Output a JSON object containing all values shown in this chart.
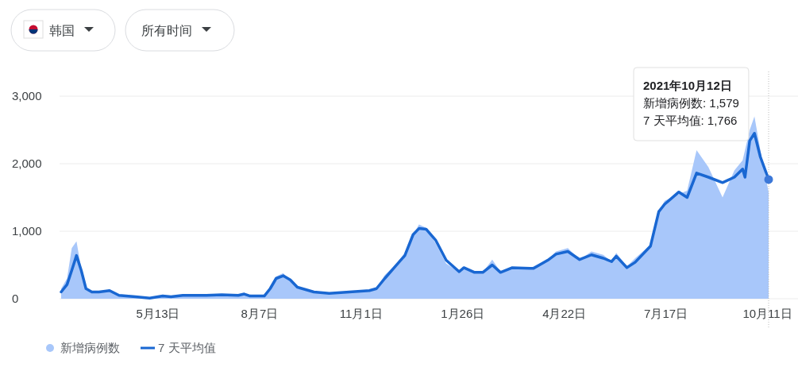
{
  "chart_data": {
    "type": "line",
    "xlim": [
      "2020-02-21",
      "2021-10-12"
    ],
    "ylim": [
      0,
      3000
    ],
    "yticks": [
      0,
      {
        "value": 1000,
        "label": "1,000"
      },
      {
        "value": 2000,
        "label": "2,000"
      },
      {
        "value": 3000,
        "label": "3,000"
      }
    ],
    "xticks": [
      {
        "value": "2020-05-13",
        "label": "5月13日"
      },
      {
        "value": "2020-08-07",
        "label": "8月7日"
      },
      {
        "value": "2020-11-01",
        "label": "11月1日"
      },
      {
        "value": "2021-01-26",
        "label": "1月26日"
      },
      {
        "value": "2021-04-22",
        "label": "4月22日"
      },
      {
        "value": "2021-07-17",
        "label": "7月17日"
      },
      {
        "value": "2021-10-11",
        "label": "10月11日"
      }
    ],
    "grid": "y",
    "legend": "bottom left",
    "x": [
      "2020-02-21",
      "2020-02-26",
      "2020-03-01",
      "2020-03-05",
      "2020-03-09",
      "2020-03-13",
      "2020-03-18",
      "2020-03-24",
      "2020-04-02",
      "2020-04-10",
      "2020-04-24",
      "2020-05-06",
      "2020-05-17",
      "2020-05-24",
      "2020-06-03",
      "2020-06-23",
      "2020-07-06",
      "2020-07-20",
      "2020-07-25",
      "2020-07-30",
      "2020-08-09",
      "2020-08-11",
      "2020-08-16",
      "2020-08-21",
      "2020-08-27",
      "2020-09-02",
      "2020-09-08",
      "2020-09-22",
      "2020-10-05",
      "2020-10-22",
      "2020-11-08",
      "2020-11-14",
      "2020-11-21",
      "2020-11-30",
      "2020-12-08",
      "2020-12-15",
      "2020-12-20",
      "2020-12-26",
      "2021-01-03",
      "2021-01-12",
      "2021-01-23",
      "2021-01-27",
      "2021-02-05",
      "2021-02-12",
      "2021-02-20",
      "2021-02-27",
      "2021-03-09",
      "2021-03-24",
      "2021-03-27",
      "2021-04-08",
      "2021-04-15",
      "2021-04-25",
      "2021-05-05",
      "2021-05-15",
      "2021-05-25",
      "2021-06-01",
      "2021-06-05",
      "2021-06-14",
      "2021-06-21",
      "2021-07-04",
      "2021-07-11",
      "2021-07-16",
      "2021-07-28",
      "2021-08-04",
      "2021-08-12",
      "2021-08-22",
      "2021-09-03",
      "2021-09-13",
      "2021-09-20",
      "2021-09-22",
      "2021-09-26",
      "2021-09-30",
      "2021-10-05",
      "2021-10-12"
    ],
    "series": [
      {
        "name": "新增病例数",
        "type": "area",
        "color": "#a8c7fa",
        "values": [
          150,
          300,
          750,
          850,
          450,
          130,
          110,
          100,
          110,
          40,
          20,
          10,
          30,
          30,
          50,
          50,
          60,
          60,
          80,
          40,
          50,
          50,
          180,
          330,
          380,
          260,
          150,
          110,
          80,
          100,
          130,
          160,
          350,
          500,
          680,
          950,
          1100,
          1050,
          820,
          520,
          400,
          460,
          380,
          390,
          580,
          400,
          450,
          450,
          480,
          580,
          700,
          750,
          580,
          700,
          650,
          550,
          680,
          480,
          600,
          800,
          1300,
          1450,
          1550,
          1600,
          2200,
          1950,
          1500,
          1900,
          2050,
          null,
          2500,
          2700,
          2200,
          1579
        ]
      },
      {
        "name": "7 天平均值",
        "color": "#1967d2",
        "values": [
          100,
          210,
          420,
          640,
          420,
          150,
          100,
          100,
          120,
          50,
          30,
          10,
          40,
          30,
          50,
          50,
          60,
          50,
          70,
          40,
          40,
          40,
          150,
          300,
          340,
          280,
          170,
          100,
          80,
          100,
          120,
          150,
          300,
          480,
          640,
          950,
          1040,
          1030,
          870,
          570,
          400,
          460,
          390,
          390,
          500,
          390,
          460,
          450,
          450,
          570,
          660,
          700,
          580,
          650,
          600,
          550,
          630,
          460,
          540,
          780,
          1290,
          1400,
          1580,
          1500,
          1860,
          1800,
          1720,
          1800,
          1920,
          1800,
          2340,
          2450,
          2100,
          1766
        ]
      }
    ],
    "annotations": [
      "韩国",
      "所有时间",
      "2021年10月12日",
      "新增病例数: 1,579",
      "7 天平均值: 1,766"
    ]
  }
}
